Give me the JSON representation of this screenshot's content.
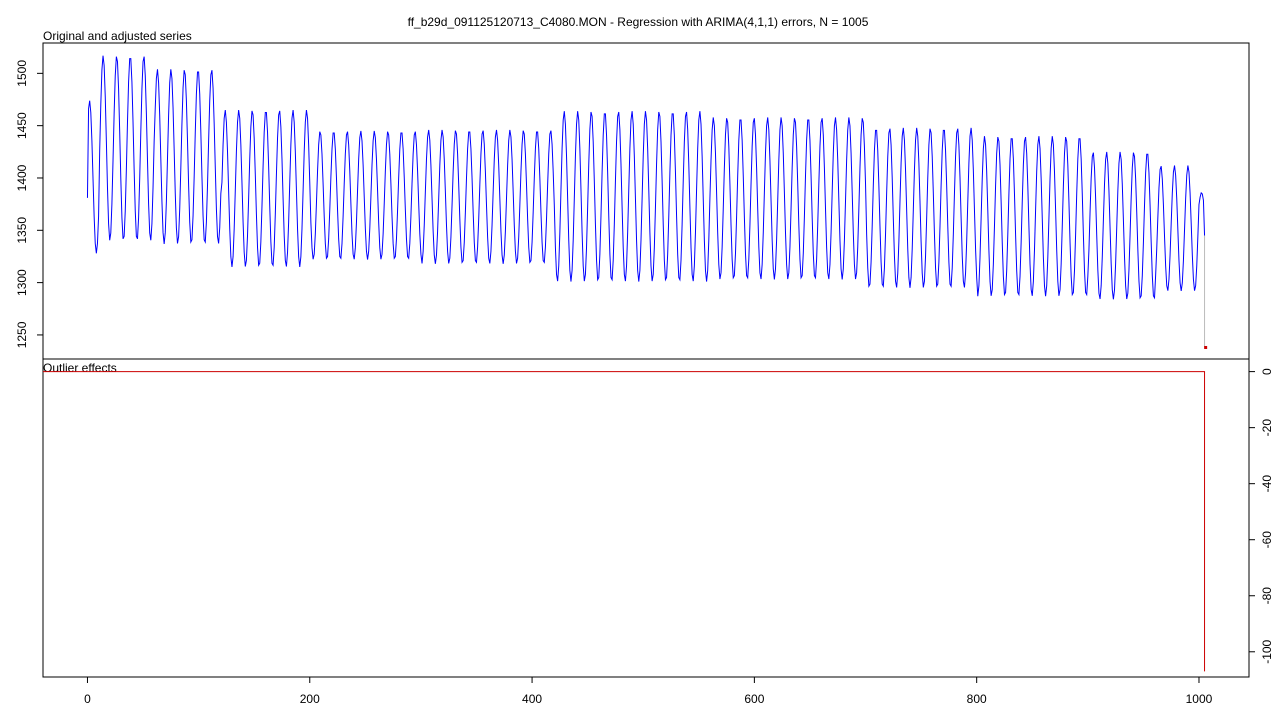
{
  "title": "ff_b29d_091125120713_C4080.MON - Regression with ARIMA(4,1,1) errors, N = 1005",
  "colors": {
    "series": "#0000ff",
    "adjusted": "#bbbbbb",
    "outlier": "#cc0000",
    "axis": "#000000"
  },
  "chart_data": [
    {
      "type": "line",
      "panel_label": "Original and adjusted series",
      "n": 1005,
      "xlim": [
        -40,
        1045
      ],
      "ylim": [
        1227,
        1529
      ],
      "y_ticks": [
        1250,
        1300,
        1350,
        1400,
        1450,
        1500
      ],
      "y_axis_side": "left",
      "series": [
        {
          "role": "original",
          "generator": "periodic",
          "start": 1381,
          "period": 12.2,
          "segments": [
            {
              "x": [
                0,
                10
              ],
              "low": 1328,
              "high": 1474
            },
            {
              "x": [
                10,
                60
              ],
              "low": 1340,
              "high": 1517
            },
            {
              "x": [
                60,
                120
              ],
              "low": 1337,
              "high": 1504
            },
            {
              "x": [
                120,
                200
              ],
              "low": 1315,
              "high": 1465
            },
            {
              "x": [
                200,
                300
              ],
              "low": 1322,
              "high": 1445
            },
            {
              "x": [
                300,
                420
              ],
              "low": 1318,
              "high": 1446
            },
            {
              "x": [
                420,
                560
              ],
              "low": 1301,
              "high": 1464
            },
            {
              "x": [
                560,
                700
              ],
              "low": 1303,
              "high": 1458
            },
            {
              "x": [
                700,
                800
              ],
              "low": 1295,
              "high": 1448
            },
            {
              "x": [
                800,
                900
              ],
              "low": 1287,
              "high": 1440
            },
            {
              "x": [
                900,
                960
              ],
              "low": 1284,
              "high": 1425
            },
            {
              "x": [
                960,
                1000
              ],
              "low": 1292,
              "high": 1412
            },
            {
              "x": [
                1000,
                1005
              ],
              "low": 1345,
              "high": 1386
            }
          ],
          "end": 1345
        },
        {
          "role": "adjusted-tail",
          "x": [
            1005,
            1005
          ],
          "y": [
            1345,
            1238
          ]
        }
      ],
      "points": [
        {
          "x": 1006,
          "y": 1238,
          "role": "outlier"
        }
      ]
    },
    {
      "type": "line",
      "panel_label": "Outlier effects",
      "xlim": [
        -40,
        1045
      ],
      "ylim": [
        -109,
        4.5
      ],
      "x_ticks": [
        0,
        200,
        400,
        600,
        800,
        1000
      ],
      "y_ticks": [
        0,
        -20,
        -40,
        -60,
        -80,
        -100
      ],
      "y_axis_side": "right",
      "series": [
        {
          "role": "outlier-effect",
          "x": [
            -40,
            1005,
            1005,
            1005
          ],
          "y": [
            0,
            0,
            -107,
            -107
          ]
        }
      ]
    }
  ]
}
